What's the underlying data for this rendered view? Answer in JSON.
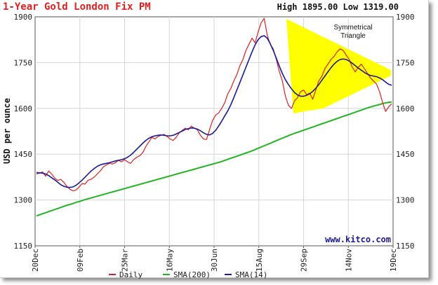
{
  "chart_data": {
    "type": "line",
    "title": "1-Year Gold London Fix PM",
    "high_low": "High 1895.00 Low 1319.00",
    "ylabel": "USD per ounce",
    "ylim": [
      1150,
      1900
    ],
    "yticks": [
      "1900",
      "1750",
      "1600",
      "1450",
      "1300",
      "1150"
    ],
    "x_ticks": [
      "20Dec",
      "09Feb",
      "25Mar",
      "16May",
      "30Jun",
      "15Aug",
      "29Sep",
      "14Nov",
      "19Dec"
    ],
    "watermark": "www.kitco.com",
    "annotation": "Symmetrical Triangle",
    "grid": true,
    "legend_position": "bottom",
    "series": [
      {
        "name": "Daily",
        "color": "#e02020",
        "values": [
          1385,
          1388,
          1392,
          1378,
          1395,
          1385,
          1372,
          1364,
          1368,
          1358,
          1345,
          1335,
          1330,
          1332,
          1342,
          1354,
          1352,
          1365,
          1368,
          1375,
          1385,
          1395,
          1408,
          1415,
          1420,
          1418,
          1422,
          1430,
          1425,
          1432,
          1425,
          1420,
          1432,
          1440,
          1445,
          1455,
          1475,
          1490,
          1505,
          1500,
          1508,
          1512,
          1515,
          1508,
          1500,
          1495,
          1505,
          1520,
          1528,
          1535,
          1530,
          1542,
          1535,
          1530,
          1512,
          1500,
          1498,
          1530,
          1560,
          1578,
          1585,
          1600,
          1618,
          1648,
          1665,
          1690,
          1710,
          1740,
          1760,
          1790,
          1810,
          1830,
          1815,
          1850,
          1880,
          1895,
          1840,
          1810,
          1795,
          1760,
          1720,
          1690,
          1640,
          1610,
          1600,
          1625,
          1635,
          1655,
          1660,
          1645,
          1650,
          1630,
          1660,
          1690,
          1705,
          1730,
          1745,
          1760,
          1770,
          1785,
          1795,
          1790,
          1775,
          1760,
          1735,
          1720,
          1735,
          1745,
          1730,
          1715,
          1700,
          1690,
          1680,
          1655,
          1620,
          1590,
          1605,
          1615
        ]
      },
      {
        "name": "SMA(200)",
        "color": "#22b522",
        "values": [
          1248,
          1253,
          1258,
          1263,
          1268,
          1273,
          1278,
          1283,
          1287,
          1292,
          1296,
          1301,
          1305,
          1309,
          1313,
          1317,
          1321,
          1325,
          1329,
          1333,
          1337,
          1341,
          1345,
          1349,
          1353,
          1357,
          1361,
          1365,
          1369,
          1373,
          1377,
          1381,
          1385,
          1389,
          1393,
          1397,
          1401,
          1405,
          1409,
          1413,
          1417,
          1421,
          1425,
          1430,
          1435,
          1440,
          1445,
          1450,
          1455,
          1460,
          1466,
          1472,
          1478,
          1484,
          1490,
          1496,
          1502,
          1508,
          1514,
          1519,
          1524,
          1529,
          1534,
          1539,
          1544,
          1549,
          1554,
          1559,
          1564,
          1569,
          1574,
          1579,
          1584,
          1589,
          1594,
          1599,
          1604,
          1608,
          1612,
          1616,
          1619,
          1621
        ]
      },
      {
        "name": "SMA(14)",
        "color": "#1a1a9a",
        "values": [
          1390,
          1389,
          1388,
          1385,
          1380,
          1373,
          1366,
          1358,
          1350,
          1345,
          1342,
          1341,
          1343,
          1348,
          1356,
          1365,
          1375,
          1385,
          1395,
          1403,
          1410,
          1415,
          1418,
          1420,
          1422,
          1425,
          1428,
          1430,
          1432,
          1435,
          1440,
          1447,
          1456,
          1466,
          1476,
          1486,
          1495,
          1502,
          1507,
          1510,
          1512,
          1513,
          1512,
          1510,
          1510,
          1512,
          1516,
          1521,
          1526,
          1531,
          1534,
          1536,
          1535,
          1532,
          1527,
          1520,
          1515,
          1513,
          1518,
          1528,
          1542,
          1558,
          1575,
          1592,
          1612,
          1635,
          1660,
          1685,
          1710,
          1735,
          1760,
          1785,
          1808,
          1825,
          1835,
          1838,
          1830,
          1812,
          1790,
          1764,
          1738,
          1714,
          1694,
          1678,
          1664,
          1652,
          1644,
          1640,
          1640,
          1643,
          1648,
          1656,
          1666,
          1678,
          1692,
          1706,
          1720,
          1733,
          1745,
          1754,
          1760,
          1762,
          1760,
          1755,
          1748,
          1740,
          1732,
          1725,
          1718,
          1712,
          1708,
          1706,
          1704,
          1700,
          1694,
          1686,
          1679,
          1676
        ]
      }
    ]
  }
}
